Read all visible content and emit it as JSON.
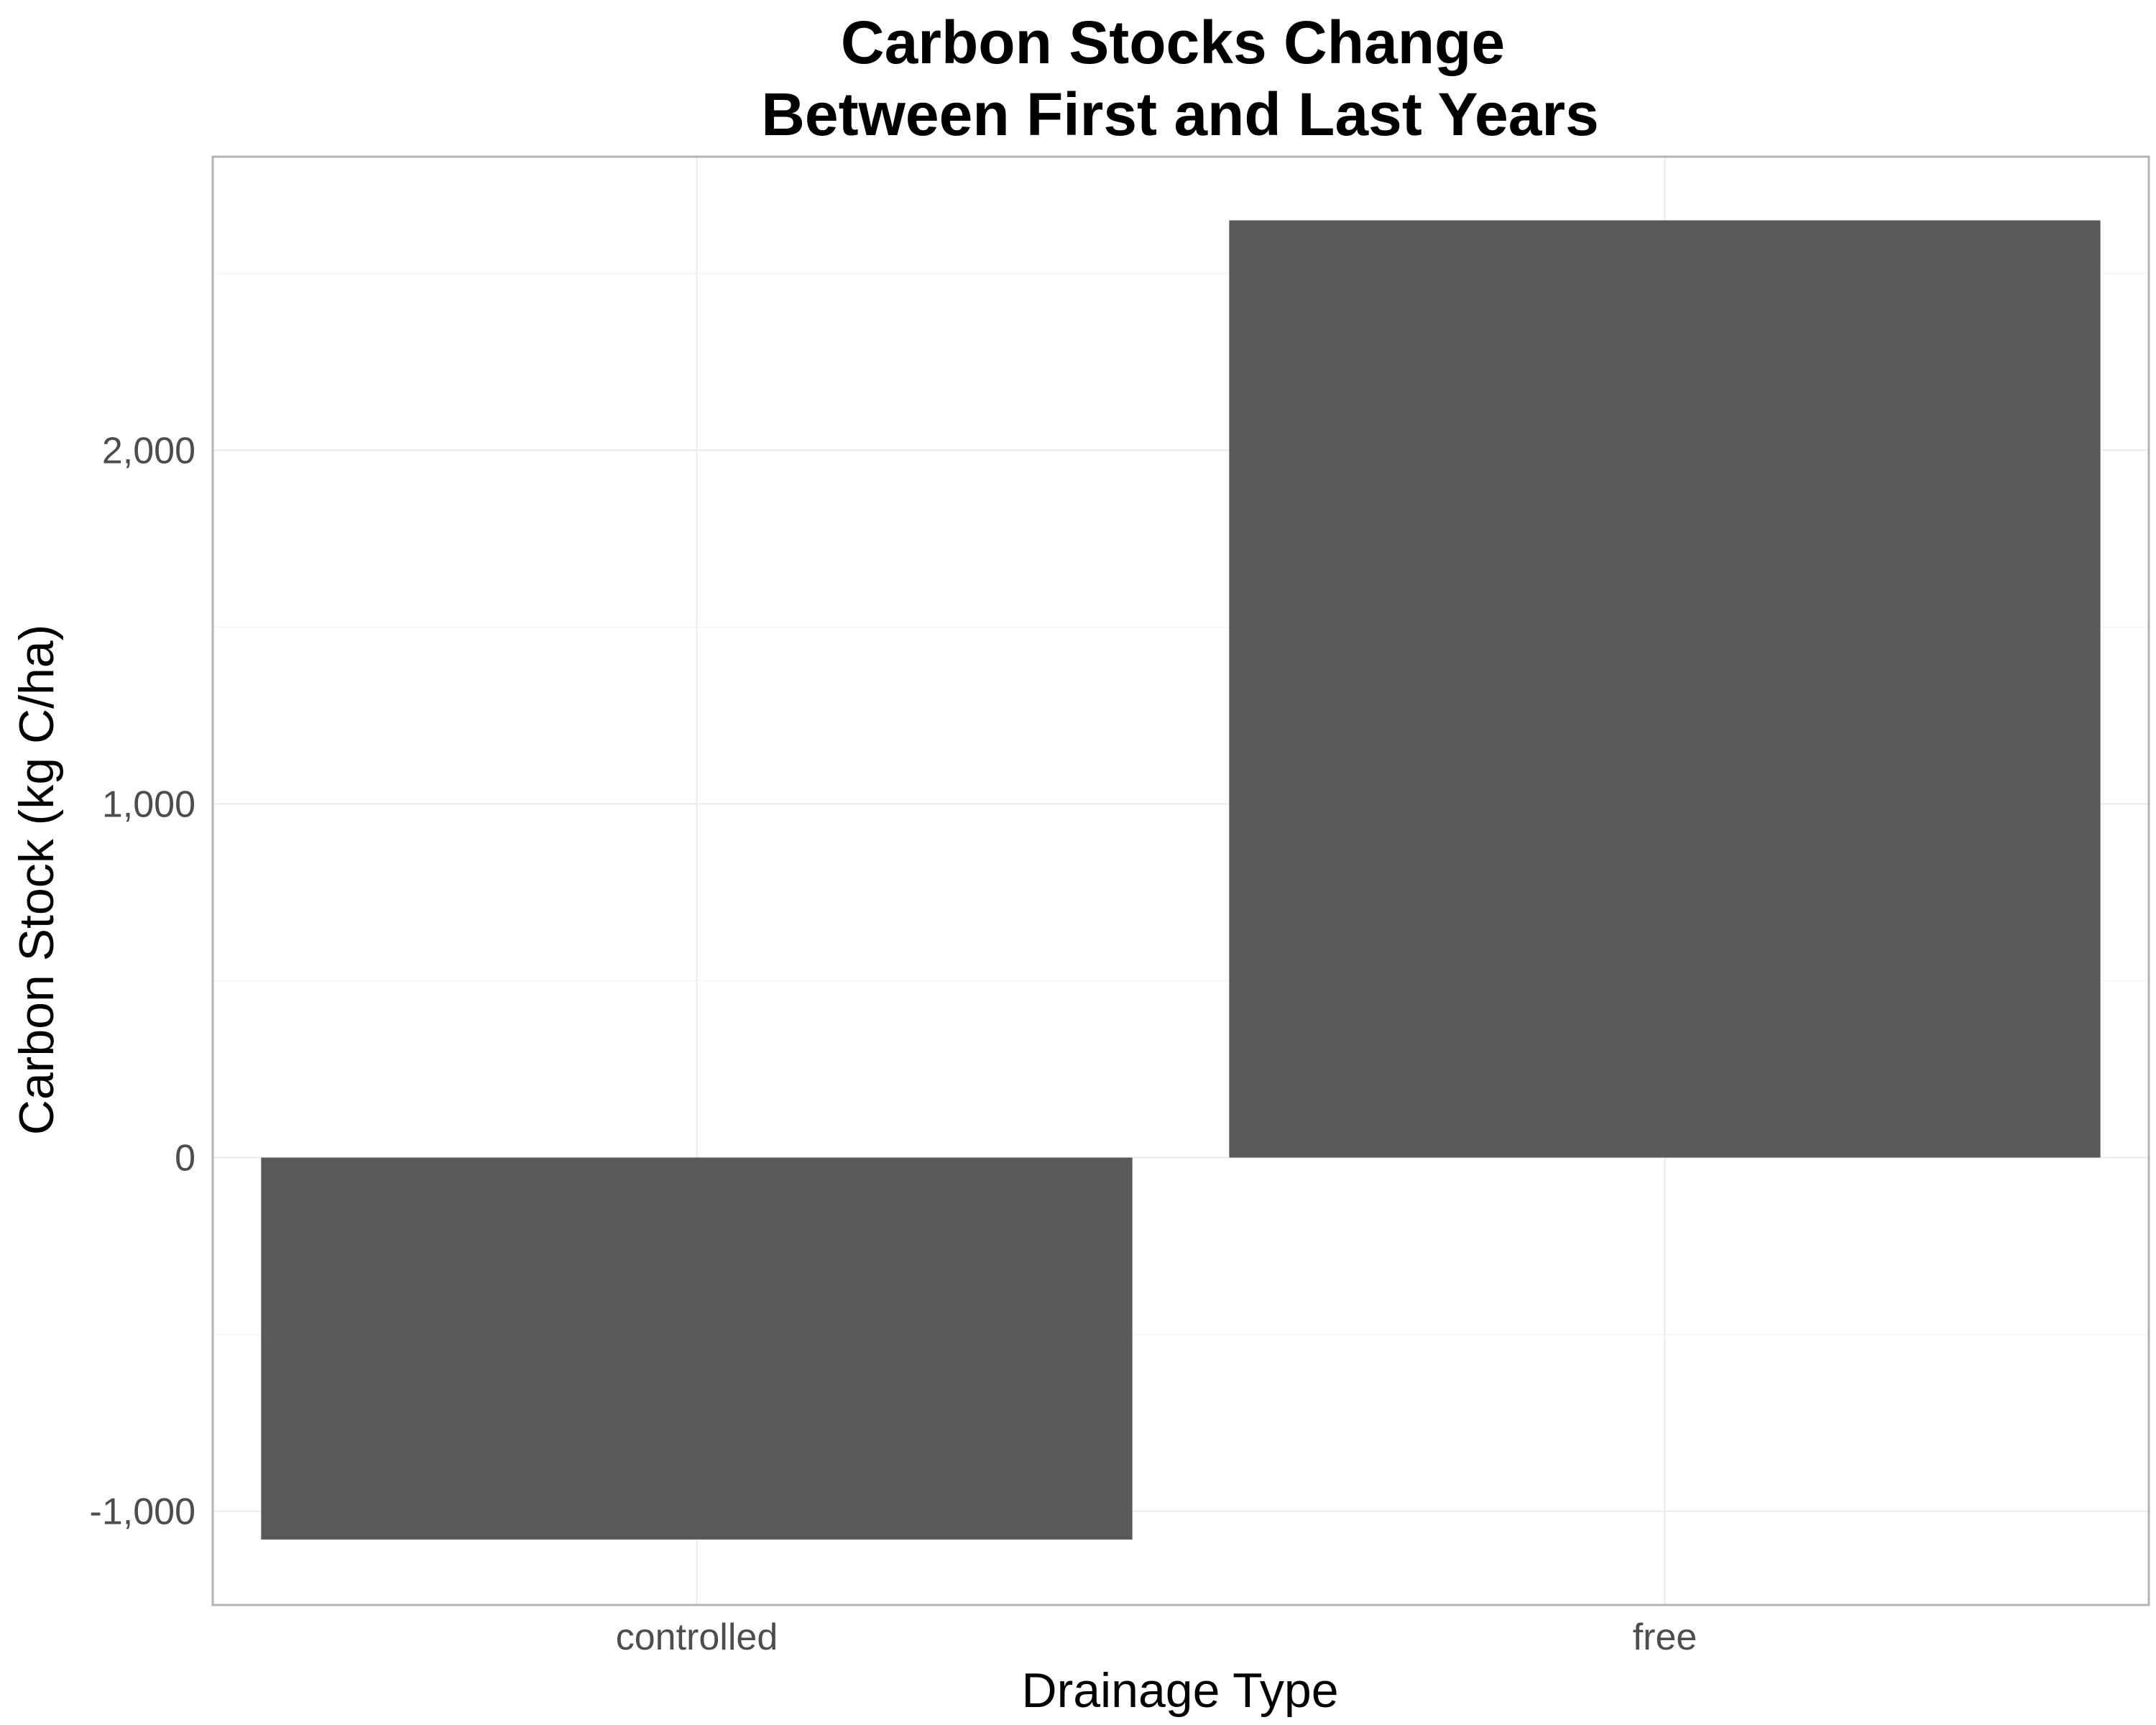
{
  "chart_data": {
    "type": "bar",
    "title_lines": [
      "Carbon Stocks Change",
      "Between First and Last Years"
    ],
    "xlabel": "Drainage Type",
    "ylabel": "Carbon Stock (kg C/ha)",
    "categories": [
      "controlled",
      "free"
    ],
    "values": [
      -1080,
      2650
    ],
    "ylim": [
      -1265,
      2830
    ],
    "yticks": [
      -1000,
      0,
      1000,
      2000
    ],
    "ytick_labels": [
      "-1,000",
      "0",
      "1,000",
      "2,000"
    ],
    "grid": true,
    "legend": "none",
    "colors": {
      "bar": "#595959",
      "grid_major": "#ebebeb",
      "grid_minor": "#f5f5f5",
      "panel_border": "#b3b3b3",
      "tick_text": "#4d4d4d"
    }
  }
}
